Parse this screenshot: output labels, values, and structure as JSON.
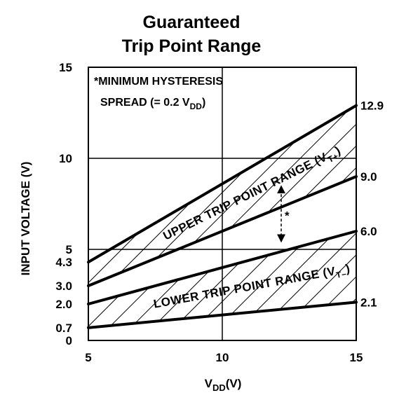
{
  "chart_data": {
    "type": "area",
    "title_line1": "Guaranteed",
    "title_line2": "Trip Point Range",
    "xlabel": "V",
    "xlabel_sub": "DD",
    "xlabel_unit": "(V)",
    "ylabel": "INPUT VOLTAGE (V)",
    "xlim": [
      5,
      15
    ],
    "ylim": [
      0,
      15
    ],
    "x_ticks": [
      5,
      10,
      15
    ],
    "y_ticks_left": [
      {
        "value": 0,
        "label": "0"
      },
      {
        "value": 0.7,
        "label": "0.7"
      },
      {
        "value": 2.0,
        "label": "2.0"
      },
      {
        "value": 3.0,
        "label": "3.0"
      },
      {
        "value": 4.3,
        "label": "4.3"
      },
      {
        "value": 5,
        "label": "5"
      },
      {
        "value": 10,
        "label": "10"
      },
      {
        "value": 15,
        "label": "15"
      }
    ],
    "y_ticks_right": [
      {
        "value": 12.9,
        "label": "12.9"
      },
      {
        "value": 9.0,
        "label": "9.0"
      },
      {
        "value": 6.0,
        "label": "6.0"
      },
      {
        "value": 2.1,
        "label": "2.1"
      }
    ],
    "gridlines_x": [
      10
    ],
    "gridlines_y": [
      5,
      10
    ],
    "series": [
      {
        "x": [
          5,
          15
        ],
        "values": [
          4.3,
          12.9
        ]
      },
      {
        "x": [
          5,
          15
        ],
        "values": [
          3.0,
          9.0
        ]
      },
      {
        "x": [
          5,
          15
        ],
        "values": [
          2.0,
          6.0
        ]
      },
      {
        "x": [
          5,
          15
        ],
        "values": [
          0.7,
          2.1
        ]
      }
    ],
    "regions": [
      {
        "label": "UPPER TRIP POINT RANGE (V",
        "sub": "T+",
        "close": ")",
        "upper_series": 0,
        "lower_series": 1
      },
      {
        "label": "LOWER TRIP POINT RANGE (V",
        "sub": "T–",
        "close": ")",
        "upper_series": 2,
        "lower_series": 3
      }
    ],
    "annotation": {
      "line1": "*MINIMUM HYSTERESIS",
      "line2": "SPREAD (= 0.2 V",
      "line2_sub": "DD",
      "line2_close": ")"
    },
    "hysteresis_marker": {
      "label": "*",
      "x": 12.2,
      "from": 5.6,
      "to": 8.3
    }
  }
}
